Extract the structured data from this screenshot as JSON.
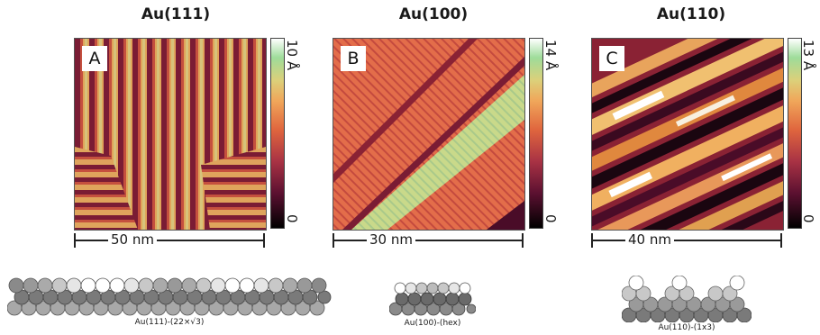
{
  "panels": [
    {
      "title": "Au(111)",
      "letter": "A",
      "colorbar_max": "10 Å",
      "colorbar_min": "0",
      "scale": "50 nm",
      "model_caption": "Au(111)-(22×√3)"
    },
    {
      "title": "Au(100)",
      "letter": "B",
      "colorbar_max": "14 Å",
      "colorbar_min": "0",
      "scale": "30 nm",
      "model_caption": "Au(100)-(hex)"
    },
    {
      "title": "Au(110)",
      "letter": "C",
      "colorbar_max": "13 Å",
      "colorbar_min": "0",
      "scale": "40 nm",
      "model_caption": "Au(110)-(1x3)"
    }
  ]
}
